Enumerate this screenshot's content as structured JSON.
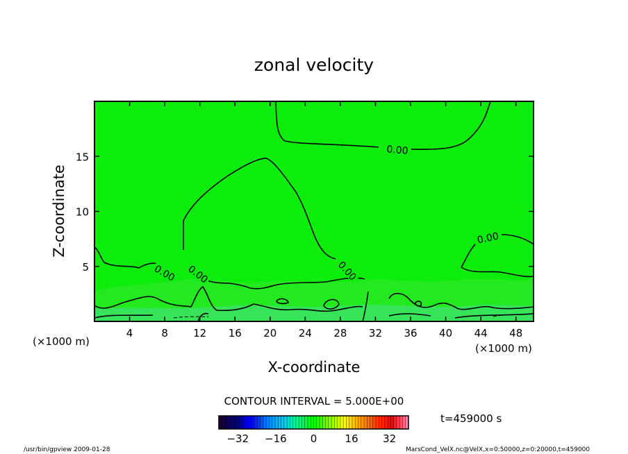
{
  "chart_data": {
    "type": "heatmap",
    "title": "zonal velocity",
    "xlabel": "X-coordinate",
    "ylabel": "Z-coordinate",
    "x_unit_left": "(×1000 m)",
    "x_unit_right": "(×1000 m)",
    "xlim": [
      0,
      50
    ],
    "ylim": [
      0,
      20
    ],
    "x_ticks": [
      4,
      8,
      12,
      16,
      20,
      24,
      28,
      32,
      36,
      40,
      44,
      48
    ],
    "y_ticks": [
      5,
      10,
      15
    ],
    "field_fill_color": "#0ced0c",
    "contour_line_color": "#000000",
    "contour_interval_text": "CONTOUR INTERVAL = 5.000E+00",
    "contour_labels": [
      {
        "text": "0.00",
        "x": 34.5,
        "y": 15.6,
        "angle": 5
      },
      {
        "text": "0.00",
        "x": 8.0,
        "y": 4.4,
        "angle": 30
      },
      {
        "text": "0.00",
        "x": 11.8,
        "y": 4.3,
        "angle": 38
      },
      {
        "text": "0.00",
        "x": 28.8,
        "y": 4.6,
        "angle": 48
      },
      {
        "text": "0.00",
        "x": 44.8,
        "y": 7.6,
        "angle": -12
      }
    ],
    "colorbar": {
      "ticks": [
        -32,
        -16,
        0,
        16,
        32
      ],
      "range": [
        -40,
        40
      ],
      "colors": [
        "#1a0033",
        "#000080",
        "#0000ff",
        "#0080ff",
        "#00c8ff",
        "#00ff80",
        "#00ff00",
        "#80ff00",
        "#ffff00",
        "#ffa000",
        "#ff4000",
        "#ff0000",
        "#ff80a0"
      ]
    },
    "time_text": "t=459000 s"
  },
  "footer": {
    "left": "/usr/bin/gpview  2009-01-28",
    "right": "MarsCond_VelX.nc@VelX,x=0:50000,z=0:20000,t=459000"
  }
}
